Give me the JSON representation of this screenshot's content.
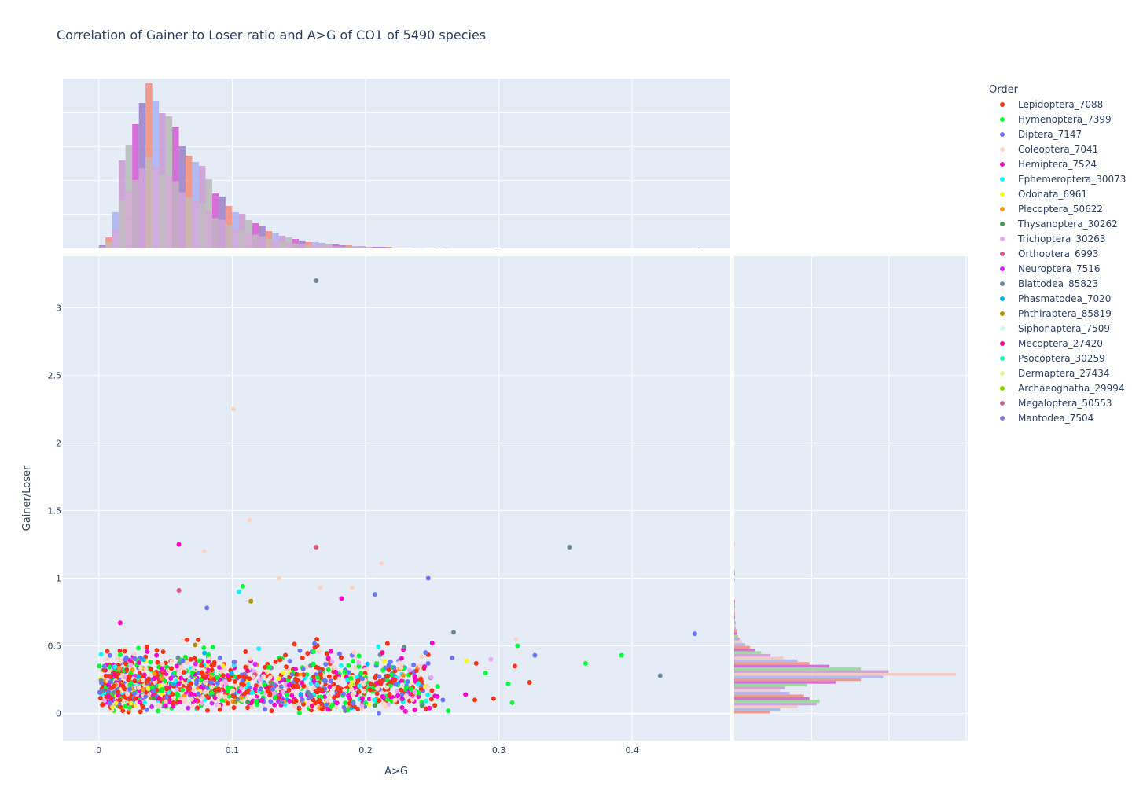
{
  "chart_data": {
    "type": "scatter",
    "title": "Correlation of Gainer to Loser ratio and A>G of CO1 of 5490 species",
    "xlabel": "A>G",
    "ylabel": "Gainer/Loser",
    "x_ticks": [
      "0",
      "0.1",
      "0.2",
      "0.3",
      "0.4"
    ],
    "y_ticks": [
      "0",
      "0.5",
      "1",
      "1.5",
      "2",
      "2.5",
      "3"
    ],
    "xlim": [
      -0.027,
      0.473
    ],
    "ylim": [
      -0.2,
      3.38
    ],
    "grid": true,
    "marginal_x": "histogram",
    "marginal_y": "histogram",
    "legend": {
      "title": "Order",
      "placement": "right",
      "entries": [
        {
          "name": "Lepidoptera_7088",
          "color": "#FD3216"
        },
        {
          "name": "Hymenoptera_7399",
          "color": "#00FE35"
        },
        {
          "name": "Diptera_7147",
          "color": "#6A76FC"
        },
        {
          "name": "Coleoptera_7041",
          "color": "#FED4C4"
        },
        {
          "name": "Hemiptera_7524",
          "color": "#FE00CE"
        },
        {
          "name": "Ephemeroptera_30073",
          "color": "#0DF9FF"
        },
        {
          "name": "Odonata_6961",
          "color": "#F6F926"
        },
        {
          "name": "Plecoptera_50622",
          "color": "#FF9616"
        },
        {
          "name": "Thysanoptera_30262",
          "color": "#479B55"
        },
        {
          "name": "Trichoptera_30263",
          "color": "#EEA6FB"
        },
        {
          "name": "Orthoptera_6993",
          "color": "#DC587D"
        },
        {
          "name": "Neuroptera_7516",
          "color": "#D626FF"
        },
        {
          "name": "Blattodea_85823",
          "color": "#6E899C"
        },
        {
          "name": "Phasmatodea_7020",
          "color": "#00B5F7"
        },
        {
          "name": "Phthiraptera_85819",
          "color": "#B68E00"
        },
        {
          "name": "Siphonaptera_7509",
          "color": "#C9FBE5"
        },
        {
          "name": "Mecoptera_27420",
          "color": "#FF0092"
        },
        {
          "name": "Psocoptera_30259",
          "color": "#22FFA7"
        },
        {
          "name": "Dermaptera_27434",
          "color": "#E3EE9E"
        },
        {
          "name": "Archaeognatha_29994",
          "color": "#86CE00"
        },
        {
          "name": "Megaloptera_50553",
          "color": "#BC7196"
        },
        {
          "name": "Mantodea_7504",
          "color": "#7E7DCD"
        }
      ]
    },
    "points": [
      [
        0.163,
        3.2,
        12
      ],
      [
        0.101,
        2.25,
        3
      ],
      [
        0.113,
        1.43,
        3
      ],
      [
        0.06,
        1.25,
        4
      ],
      [
        0.079,
        1.2,
        3
      ],
      [
        0.163,
        1.23,
        10
      ],
      [
        0.353,
        1.23,
        12
      ],
      [
        0.247,
        1.0,
        2
      ],
      [
        0.135,
        1.0,
        3
      ],
      [
        0.06,
        0.91,
        10
      ],
      [
        0.108,
        0.94,
        1
      ],
      [
        0.105,
        0.9,
        5
      ],
      [
        0.212,
        1.11,
        3
      ],
      [
        0.207,
        0.88,
        2
      ],
      [
        0.166,
        0.93,
        3
      ],
      [
        0.19,
        0.93,
        3
      ],
      [
        0.114,
        0.83,
        14
      ],
      [
        0.081,
        0.78,
        2
      ],
      [
        0.182,
        0.85,
        4
      ],
      [
        0.016,
        0.67,
        4
      ],
      [
        0.447,
        0.59,
        2
      ],
      [
        0.421,
        0.28,
        12
      ],
      [
        0.392,
        0.43,
        1
      ],
      [
        0.365,
        0.37,
        1
      ],
      [
        0.327,
        0.43,
        2
      ],
      [
        0.323,
        0.23,
        0
      ],
      [
        0.314,
        0.5,
        1
      ],
      [
        0.313,
        0.55,
        3
      ],
      [
        0.312,
        0.35,
        0
      ],
      [
        0.31,
        0.08,
        1
      ],
      [
        0.307,
        0.22,
        1
      ],
      [
        0.296,
        0.11,
        0
      ],
      [
        0.294,
        0.4,
        9
      ],
      [
        0.29,
        0.3,
        1
      ],
      [
        0.283,
        0.37,
        0
      ],
      [
        0.282,
        0.1,
        0
      ],
      [
        0.276,
        0.39,
        6
      ],
      [
        0.275,
        0.14,
        4
      ],
      [
        0.266,
        0.6,
        12
      ],
      [
        0.265,
        0.41,
        2
      ],
      [
        0.262,
        0.02,
        1
      ],
      [
        0.258,
        0.1,
        2
      ],
      [
        0.254,
        0.2,
        1
      ],
      [
        0.252,
        0.06,
        0
      ],
      [
        0.25,
        0.52,
        4
      ],
      [
        0.247,
        0.37,
        2
      ],
      [
        0.245,
        0.45,
        2
      ],
      [
        0.24,
        0.15,
        1
      ],
      [
        0.233,
        0.32,
        9
      ],
      [
        0.229,
        0.49,
        12
      ],
      [
        0.222,
        0.25,
        0
      ],
      [
        0.215,
        0.05,
        3
      ],
      [
        0.21,
        0.0,
        2
      ],
      [
        0.207,
        0.06,
        8
      ],
      [
        0.2,
        0.08,
        1
      ]
    ],
    "histogram_x": {
      "bin_width": 0.005,
      "start": 0.0,
      "heights": [
        4,
        14,
        46,
        112,
        132,
        158,
        185,
        210,
        188,
        172,
        168,
        155,
        130,
        118,
        110,
        105,
        88,
        70,
        66,
        54,
        46,
        44,
        36,
        32,
        28,
        22,
        20,
        16,
        14,
        12,
        10,
        8,
        8,
        7,
        6,
        5,
        4,
        4,
        3,
        3,
        2,
        2,
        2,
        2,
        1,
        1,
        1,
        1,
        1,
        1,
        1,
        0,
        1,
        0,
        0,
        0,
        0,
        0,
        0,
        1,
        0,
        0,
        0,
        0,
        0,
        0,
        0,
        0,
        0,
        0,
        0,
        0,
        0,
        0,
        0,
        0,
        0,
        0,
        0,
        0,
        0,
        0,
        0,
        0,
        0,
        0,
        0,
        0,
        0,
        1
      ],
      "max": 210
    },
    "histogram_y": {
      "bin_width": 0.02,
      "start": 0.0,
      "heights": [
        45,
        58,
        80,
        104,
        108,
        95,
        88,
        70,
        58,
        64,
        92,
        128,
        160,
        188,
        280,
        195,
        160,
        120,
        95,
        80,
        62,
        46,
        34,
        26,
        20,
        14,
        10,
        7,
        5,
        4,
        3,
        2,
        2,
        2,
        1,
        1,
        1,
        1,
        1,
        1,
        1,
        1,
        0,
        0,
        0,
        0,
        0,
        0,
        0,
        1,
        0,
        1,
        1,
        0,
        0,
        0,
        0,
        0,
        0,
        0,
        0,
        0,
        1
      ],
      "max": 280
    }
  }
}
